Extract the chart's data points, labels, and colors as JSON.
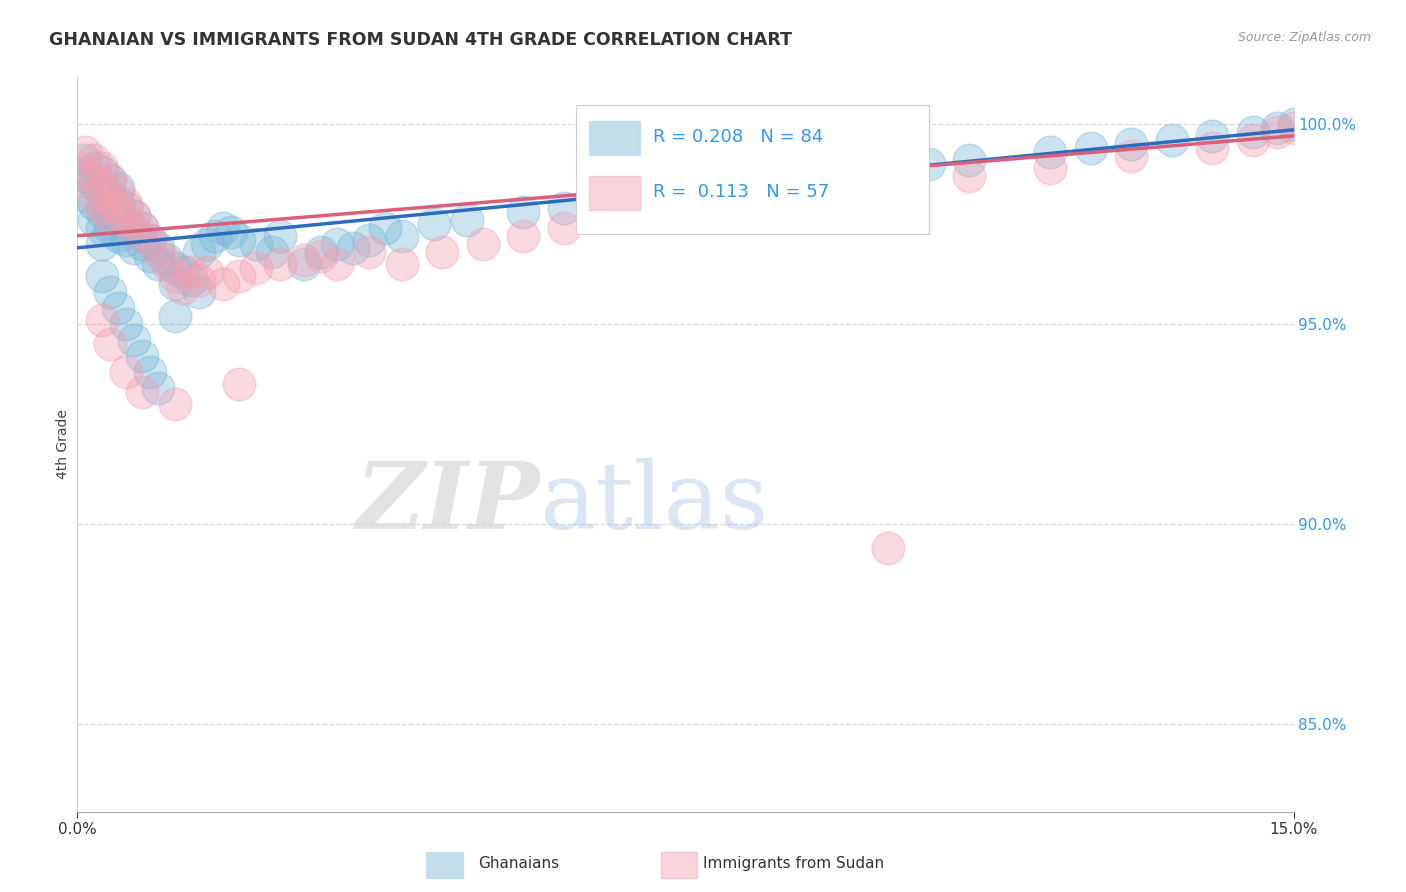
{
  "title": "GHANAIAN VS IMMIGRANTS FROM SUDAN 4TH GRADE CORRELATION CHART",
  "source": "Source: ZipAtlas.com",
  "ylabel": "4th Grade",
  "ytick_labels": [
    "85.0%",
    "90.0%",
    "95.0%",
    "100.0%"
  ],
  "ytick_values": [
    0.85,
    0.9,
    0.95,
    1.0
  ],
  "xlim": [
    0.0,
    0.15
  ],
  "ylim": [
    0.828,
    1.012
  ],
  "blue_color": "#7ab8d9",
  "pink_color": "#f4a0b0",
  "blue_line_color": "#2b6cbf",
  "pink_line_color": "#d95f7a",
  "legend_R_blue": "0.208",
  "legend_N_blue": "84",
  "legend_R_pink": "0.113",
  "legend_N_pink": "57",
  "blue_line_x0": 0.0,
  "blue_line_y0": 0.969,
  "blue_line_x1": 0.15,
  "blue_line_y1": 0.9985,
  "pink_line_x0": 0.0,
  "pink_line_y0": 0.972,
  "pink_line_x1": 0.15,
  "pink_line_y1": 0.997,
  "blue_x": [
    0.001,
    0.001,
    0.001,
    0.002,
    0.002,
    0.002,
    0.002,
    0.003,
    0.003,
    0.003,
    0.003,
    0.003,
    0.004,
    0.004,
    0.004,
    0.004,
    0.005,
    0.005,
    0.005,
    0.005,
    0.006,
    0.006,
    0.006,
    0.007,
    0.007,
    0.007,
    0.008,
    0.008,
    0.009,
    0.009,
    0.01,
    0.01,
    0.011,
    0.012,
    0.012,
    0.013,
    0.014,
    0.015,
    0.016,
    0.017,
    0.018,
    0.019,
    0.02,
    0.022,
    0.024,
    0.025,
    0.028,
    0.03,
    0.032,
    0.034,
    0.036,
    0.038,
    0.04,
    0.044,
    0.048,
    0.055,
    0.06,
    0.065,
    0.07,
    0.08,
    0.085,
    0.09,
    0.095,
    0.1,
    0.105,
    0.11,
    0.12,
    0.125,
    0.13,
    0.135,
    0.14,
    0.145,
    0.148,
    0.15,
    0.003,
    0.004,
    0.005,
    0.006,
    0.007,
    0.008,
    0.009,
    0.01,
    0.012,
    0.015
  ],
  "blue_y": [
    0.991,
    0.987,
    0.982,
    0.989,
    0.985,
    0.98,
    0.976,
    0.988,
    0.983,
    0.978,
    0.974,
    0.97,
    0.986,
    0.982,
    0.978,
    0.974,
    0.984,
    0.98,
    0.976,
    0.972,
    0.979,
    0.975,
    0.971,
    0.977,
    0.973,
    0.969,
    0.974,
    0.97,
    0.971,
    0.967,
    0.969,
    0.965,
    0.966,
    0.964,
    0.96,
    0.963,
    0.961,
    0.968,
    0.97,
    0.972,
    0.974,
    0.973,
    0.971,
    0.97,
    0.968,
    0.972,
    0.965,
    0.968,
    0.97,
    0.969,
    0.971,
    0.974,
    0.972,
    0.975,
    0.976,
    0.978,
    0.979,
    0.981,
    0.983,
    0.985,
    0.984,
    0.986,
    0.988,
    0.989,
    0.99,
    0.991,
    0.993,
    0.994,
    0.995,
    0.996,
    0.997,
    0.998,
    0.999,
    1.0,
    0.962,
    0.958,
    0.954,
    0.95,
    0.946,
    0.942,
    0.938,
    0.934,
    0.952,
    0.958
  ],
  "pink_x": [
    0.001,
    0.001,
    0.002,
    0.002,
    0.002,
    0.003,
    0.003,
    0.003,
    0.004,
    0.004,
    0.004,
    0.005,
    0.005,
    0.006,
    0.006,
    0.007,
    0.007,
    0.008,
    0.009,
    0.01,
    0.011,
    0.012,
    0.013,
    0.014,
    0.015,
    0.016,
    0.018,
    0.02,
    0.022,
    0.025,
    0.028,
    0.03,
    0.032,
    0.036,
    0.04,
    0.045,
    0.05,
    0.055,
    0.06,
    0.07,
    0.08,
    0.09,
    0.1,
    0.11,
    0.12,
    0.13,
    0.14,
    0.145,
    0.148,
    0.15,
    0.003,
    0.004,
    0.006,
    0.008,
    0.012,
    0.02,
    0.1
  ],
  "pink_y": [
    0.993,
    0.988,
    0.991,
    0.986,
    0.982,
    0.989,
    0.984,
    0.979,
    0.986,
    0.981,
    0.977,
    0.983,
    0.979,
    0.98,
    0.976,
    0.977,
    0.973,
    0.974,
    0.971,
    0.968,
    0.965,
    0.962,
    0.959,
    0.963,
    0.961,
    0.963,
    0.96,
    0.962,
    0.964,
    0.965,
    0.966,
    0.967,
    0.965,
    0.968,
    0.965,
    0.968,
    0.97,
    0.972,
    0.974,
    0.977,
    0.98,
    0.983,
    0.985,
    0.987,
    0.989,
    0.992,
    0.994,
    0.996,
    0.998,
    0.999,
    0.951,
    0.945,
    0.938,
    0.933,
    0.93,
    0.935,
    0.894
  ]
}
